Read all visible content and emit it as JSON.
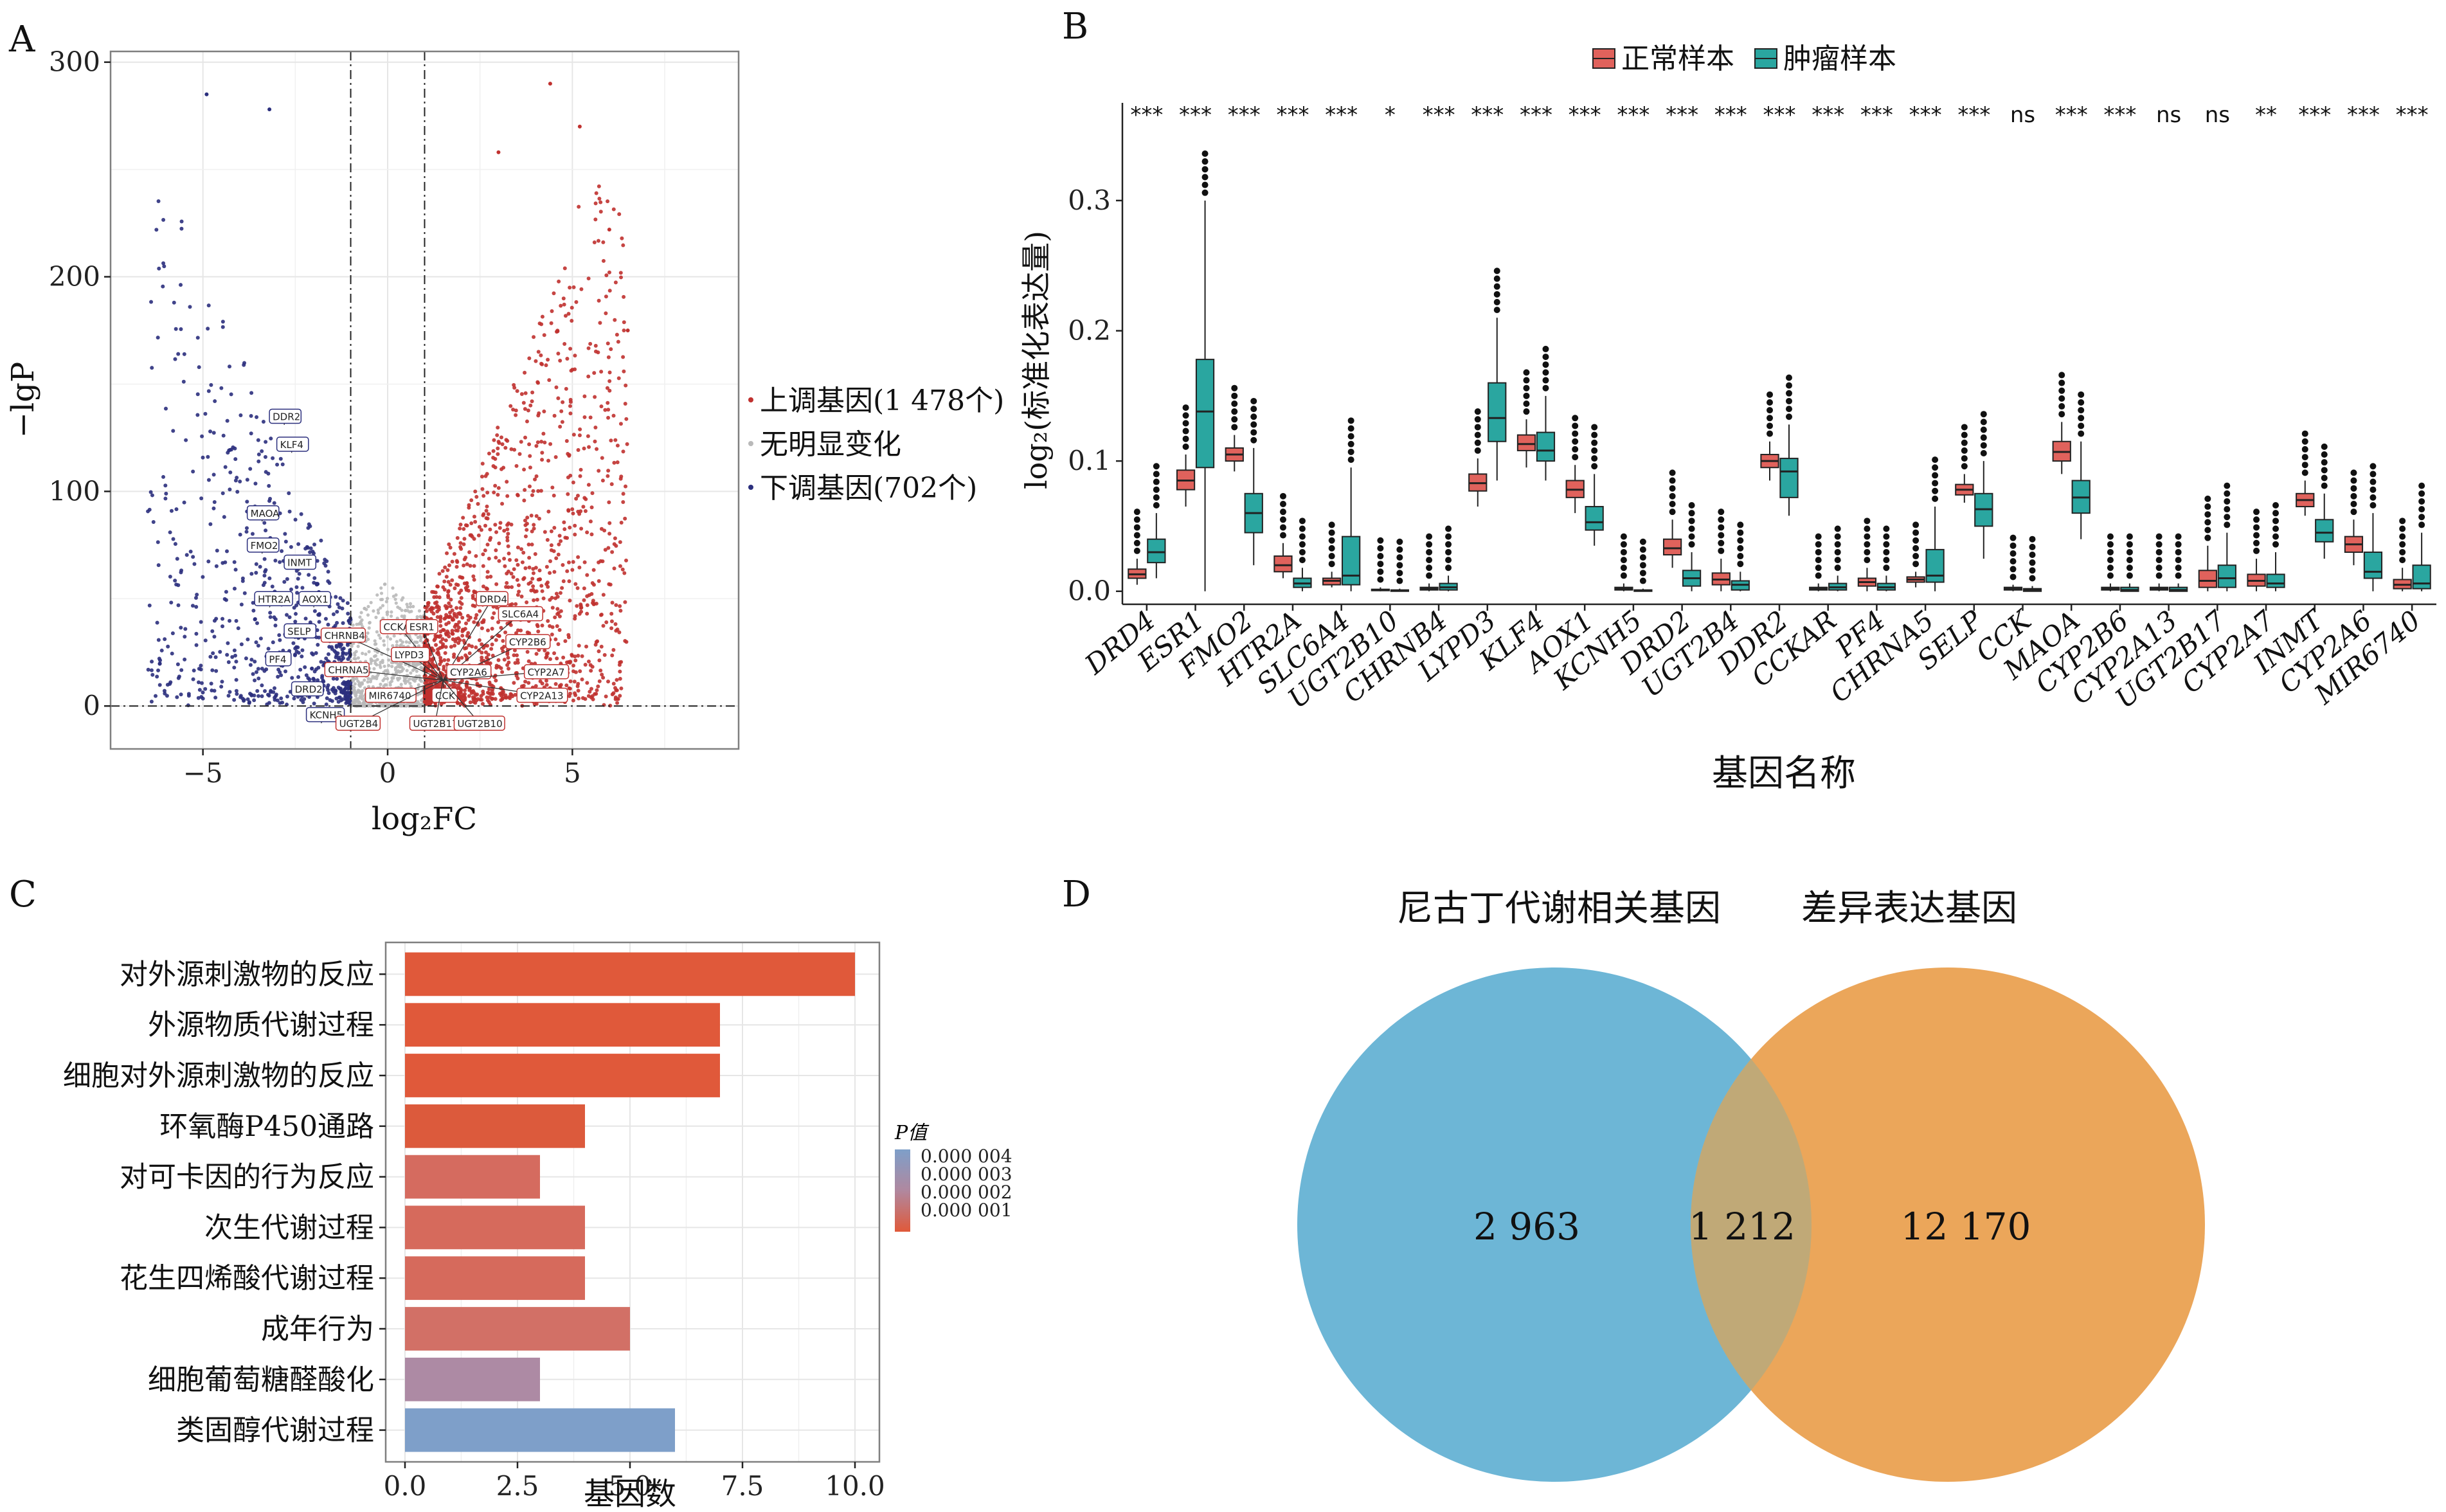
{
  "panels": {
    "A": {
      "letter": "A",
      "xlabel": "log₂FC",
      "ylabel": "−lgP",
      "xticks": [
        "−5",
        "0",
        "5"
      ],
      "yticks": [
        "0",
        "100",
        "200",
        "300"
      ],
      "legend": [
        "上调基因(1 478个)",
        "无明显变化",
        "下调基因(702个)"
      ],
      "colors": {
        "up": "#c0312f",
        "down": "#2b2f7d",
        "none": "#b9b9b9"
      },
      "gene_labels_down": [
        "DDR2",
        "KLF4",
        "MAOA",
        "FMO2",
        "INMT",
        "HTR2A",
        "AOX1",
        "SELP",
        "PF4",
        "DRD2",
        "KCNH5"
      ],
      "gene_labels_up": [
        "CHRNB4",
        "CCKAR",
        "ESR1",
        "DRD4",
        "SLC6A4",
        "CYP2B6",
        "LYPD3",
        "CHRNA5",
        "CYP2A6",
        "CYP2A7",
        "MIR6740",
        "CCK",
        "CYP2A13",
        "UGT2B4",
        "UGT2B17",
        "UGT2B10"
      ]
    },
    "B": {
      "letter": "B",
      "legend": [
        "正常样本",
        "肿瘤样本"
      ],
      "ylabel": "log₂(标准化表达量)",
      "xlabel": "基因名称",
      "yticks": [
        "0.0",
        "0.1",
        "0.2",
        "0.3"
      ],
      "colors": {
        "normal": "#e0625c",
        "tumor": "#2aa6a0"
      }
    },
    "C": {
      "letter": "C",
      "xlabel": "基因数",
      "xticks": [
        "0.0",
        "2.5",
        "5.0",
        "7.5",
        "10.0"
      ],
      "legend_title": "P值",
      "legend_ticks": [
        "0.000 004",
        "0.000 003",
        "0.000 002",
        "0.000 001"
      ]
    },
    "D": {
      "letter": "D",
      "set_left": "尼古丁代谢相关基因",
      "set_right": "差异表达基因",
      "left_only": "2 963",
      "overlap": "1 212",
      "right_only": "12 170",
      "colors": {
        "left": "#6db6d6",
        "right": "#eba65a",
        "overlap": "#c0a977"
      }
    }
  },
  "chart_data": [
    {
      "type": "scatter",
      "title": "",
      "xlabel": "log₂FC",
      "ylabel": "−lgP",
      "xlim": [
        -7.5,
        9.5
      ],
      "ylim": [
        -20,
        305
      ],
      "thresholds": {
        "log2fc": [
          -1,
          1
        ],
        "p": 0
      },
      "series": [
        {
          "name": "上调基因(1 478个)",
          "count": 1478
        },
        {
          "name": "无明显变化"
        },
        {
          "name": "下调基因(702个)",
          "count": 702
        }
      ]
    },
    {
      "type": "box",
      "xlabel": "基因名称",
      "ylabel": "log₂(标准化表达量)",
      "ylim": [
        -0.01,
        0.375
      ],
      "categories": [
        "DRD4",
        "ESR1",
        "FMO2",
        "HTR2A",
        "SLC6A4",
        "UGT2B10",
        "CHRNB4",
        "LYPD3",
        "KLF4",
        "AOX1",
        "KCNH5",
        "DRD2",
        "UGT2B4",
        "DDR2",
        "CCKAR",
        "PF4",
        "CHRNA5",
        "SELP",
        "CCK",
        "MAOA",
        "CYP2B6",
        "CYP2A13",
        "UGT2B17",
        "CYP2A7",
        "INMT",
        "CYP2A6",
        "MIR6740"
      ],
      "significance": [
        "***",
        "***",
        "***",
        "***",
        "***",
        "*",
        "***",
        "***",
        "***",
        "***",
        "***",
        "***",
        "***",
        "***",
        "***",
        "***",
        "***",
        "***",
        "ns",
        "***",
        "***",
        "ns",
        "ns",
        "**",
        "***",
        "***",
        "***"
      ],
      "series": [
        {
          "name": "正常样本",
          "stats": [
            [
              0.005,
              0.01,
              0.013,
              0.017,
              0.025
            ],
            [
              0.065,
              0.078,
              0.085,
              0.093,
              0.105
            ],
            [
              0.092,
              0.1,
              0.105,
              0.11,
              0.12
            ],
            [
              0.01,
              0.015,
              0.02,
              0.027,
              0.037
            ],
            [
              0.003,
              0.005,
              0.008,
              0.01,
              0.015
            ],
            [
              0.0,
              0.0005,
              0.001,
              0.0015,
              0.003
            ],
            [
              0.0,
              0.001,
              0.002,
              0.003,
              0.006
            ],
            [
              0.065,
              0.077,
              0.083,
              0.09,
              0.102
            ],
            [
              0.095,
              0.108,
              0.113,
              0.12,
              0.132
            ],
            [
              0.06,
              0.072,
              0.078,
              0.085,
              0.097
            ],
            [
              0.0,
              0.001,
              0.002,
              0.003,
              0.006
            ],
            [
              0.018,
              0.028,
              0.033,
              0.04,
              0.055
            ],
            [
              0.0,
              0.005,
              0.009,
              0.014,
              0.025
            ],
            [
              0.085,
              0.095,
              0.1,
              0.105,
              0.115
            ],
            [
              0.0,
              0.001,
              0.002,
              0.003,
              0.006
            ],
            [
              0.0,
              0.004,
              0.007,
              0.01,
              0.018
            ],
            [
              0.003,
              0.007,
              0.009,
              0.011,
              0.015
            ],
            [
              0.068,
              0.074,
              0.078,
              0.082,
              0.09
            ],
            [
              0.0,
              0.001,
              0.002,
              0.003,
              0.005
            ],
            [
              0.09,
              0.1,
              0.107,
              0.115,
              0.13
            ],
            [
              0.0,
              0.001,
              0.002,
              0.003,
              0.006
            ],
            [
              0.0,
              0.001,
              0.002,
              0.003,
              0.006
            ],
            [
              0.0,
              0.003,
              0.008,
              0.016,
              0.035
            ],
            [
              0.0,
              0.004,
              0.008,
              0.013,
              0.025
            ],
            [
              0.058,
              0.065,
              0.07,
              0.075,
              0.085
            ],
            [
              0.02,
              0.03,
              0.036,
              0.042,
              0.055
            ],
            [
              0.0,
              0.002,
              0.005,
              0.009,
              0.018
            ]
          ]
        },
        {
          "name": "肿瘤样本",
          "stats": [
            [
              0.01,
              0.022,
              0.03,
              0.04,
              0.06
            ],
            [
              0.0,
              0.095,
              0.138,
              0.178,
              0.3
            ],
            [
              0.02,
              0.045,
              0.06,
              0.075,
              0.11
            ],
            [
              0.0,
              0.003,
              0.006,
              0.01,
              0.018
            ],
            [
              0.0,
              0.005,
              0.012,
              0.042,
              0.095
            ],
            [
              0.0,
              0.0,
              0.0005,
              0.001,
              0.002
            ],
            [
              0.0,
              0.001,
              0.003,
              0.006,
              0.012
            ],
            [
              0.085,
              0.115,
              0.133,
              0.16,
              0.21
            ],
            [
              0.085,
              0.1,
              0.108,
              0.122,
              0.15
            ],
            [
              0.035,
              0.047,
              0.053,
              0.065,
              0.09
            ],
            [
              0.0,
              0.0,
              0.0005,
              0.001,
              0.002
            ],
            [
              0.0,
              0.004,
              0.01,
              0.016,
              0.03
            ],
            [
              0.0,
              0.001,
              0.005,
              0.008,
              0.015
            ],
            [
              0.058,
              0.072,
              0.092,
              0.102,
              0.128
            ],
            [
              0.0,
              0.001,
              0.003,
              0.006,
              0.012
            ],
            [
              0.0,
              0.001,
              0.003,
              0.006,
              0.012
            ],
            [
              0.0,
              0.007,
              0.012,
              0.032,
              0.065
            ],
            [
              0.025,
              0.05,
              0.063,
              0.075,
              0.1
            ],
            [
              0.0,
              0.0,
              0.001,
              0.002,
              0.004
            ],
            [
              0.04,
              0.06,
              0.072,
              0.085,
              0.115
            ],
            [
              0.0,
              0.0,
              0.001,
              0.003,
              0.006
            ],
            [
              0.0,
              0.0,
              0.001,
              0.003,
              0.006
            ],
            [
              0.0,
              0.003,
              0.01,
              0.02,
              0.045
            ],
            [
              0.0,
              0.003,
              0.006,
              0.013,
              0.03
            ],
            [
              0.025,
              0.038,
              0.045,
              0.055,
              0.075
            ],
            [
              0.0,
              0.01,
              0.015,
              0.03,
              0.06
            ],
            [
              0.0,
              0.002,
              0.006,
              0.02,
              0.045
            ]
          ]
        }
      ]
    },
    {
      "type": "bar",
      "orientation": "horizontal",
      "xlabel": "基因数",
      "xlim": [
        0,
        10.5
      ],
      "categories": [
        "对外源刺激物的反应",
        "外源物质代谢过程",
        "细胞对外源刺激物的反应",
        "环氧酶P450通路",
        "对可卡因的行为反应",
        "次生代谢过程",
        "花生四烯酸代谢过程",
        "成年行为",
        "细胞葡萄糖醛酸化",
        "类固醇代谢过程"
      ],
      "values": [
        10,
        7,
        7,
        4,
        3,
        4,
        4,
        5,
        3,
        6
      ],
      "bar_colors": [
        "#e0593a",
        "#e0593a",
        "#e0593a",
        "#dc5a3c",
        "#d56b5f",
        "#d66a5c",
        "#d66a5c",
        "#d27066",
        "#ad8aa4",
        "#7e9fc9"
      ],
      "color_legend": {
        "title": "P值",
        "ticks": [
          4e-06,
          3e-06,
          2e-06,
          1e-06
        ]
      }
    },
    {
      "type": "venn",
      "sets": [
        "尼古丁代谢相关基因",
        "差异表达基因"
      ],
      "values": {
        "left_only": 2963,
        "overlap": 1212,
        "right_only": 12170
      }
    }
  ]
}
